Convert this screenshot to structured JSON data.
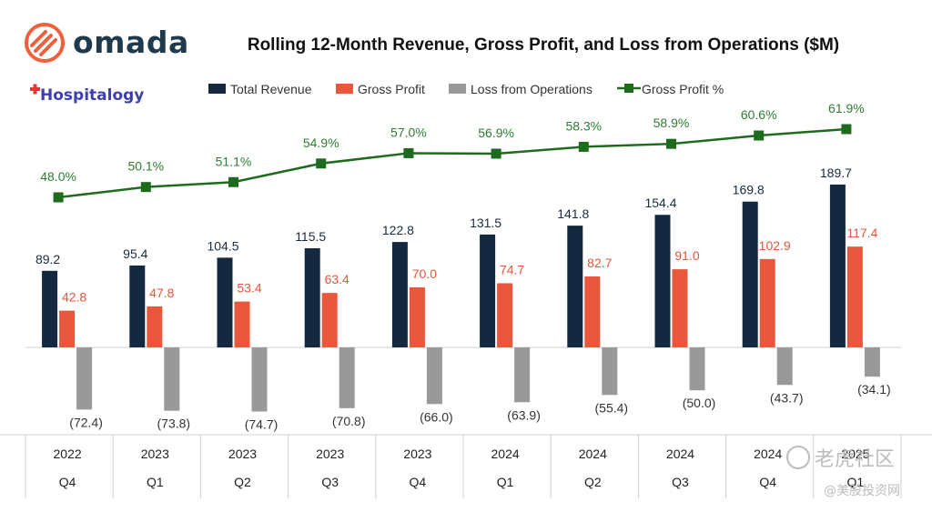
{
  "brand": {
    "logo_text": "omada",
    "hospitalogy_text": "Hospitalogy"
  },
  "watermark": {
    "main": "老虎社区",
    "sub": "@美股投资网"
  },
  "colors": {
    "revenue": "#142840",
    "gross_profit": "#e9573d",
    "loss": "#999999",
    "gross_profit_pct": "#1e6b1e",
    "omada_orange": "#f0603c"
  },
  "chart_data": {
    "type": "bar",
    "title": "Rolling 12-Month Revenue, Gross Profit, and Loss from Operations ($M)",
    "legend_position": "top",
    "categories": [
      {
        "year": "2022",
        "quarter": "Q4"
      },
      {
        "year": "2023",
        "quarter": "Q1"
      },
      {
        "year": "2023",
        "quarter": "Q2"
      },
      {
        "year": "2023",
        "quarter": "Q3"
      },
      {
        "year": "2023",
        "quarter": "Q4"
      },
      {
        "year": "2024",
        "quarter": "Q1"
      },
      {
        "year": "2024",
        "quarter": "Q2"
      },
      {
        "year": "2024",
        "quarter": "Q3"
      },
      {
        "year": "2024",
        "quarter": "Q4"
      },
      {
        "year": "2025",
        "quarter": "Q1"
      }
    ],
    "series": [
      {
        "name": "Total Revenue",
        "type": "bar",
        "values": [
          89.2,
          95.4,
          104.5,
          115.5,
          122.8,
          131.5,
          141.8,
          154.4,
          169.8,
          189.7
        ],
        "labels": [
          "89.2",
          "95.4",
          "104.5",
          "115.5",
          "122.8",
          "131.5",
          "141.8",
          "154.4",
          "169.8",
          "189.7"
        ]
      },
      {
        "name": "Gross Profit",
        "type": "bar",
        "values": [
          42.8,
          47.8,
          53.4,
          63.4,
          70.0,
          74.7,
          82.7,
          91.0,
          102.9,
          117.4
        ],
        "labels": [
          "42.8",
          "47.8",
          "53.4",
          "63.4",
          "70.0",
          "74.7",
          "82.7",
          "91.0",
          "102.9",
          "117.4"
        ]
      },
      {
        "name": "Loss from Operations",
        "type": "bar",
        "values": [
          -72.4,
          -73.8,
          -74.7,
          -70.8,
          -66.0,
          -63.9,
          -55.4,
          -50.0,
          -43.7,
          -34.1
        ],
        "labels": [
          "(72.4)",
          "(73.8)",
          "(74.7)",
          "(70.8)",
          "(66.0)",
          "(63.9)",
          "(55.4)",
          "(50.0)",
          "(43.7)",
          "(34.1)"
        ]
      },
      {
        "name": "Gross Profit %",
        "type": "line",
        "values": [
          48.0,
          50.1,
          51.1,
          54.9,
          57.0,
          56.9,
          58.3,
          58.9,
          60.6,
          61.9
        ],
        "labels": [
          "48.0%",
          "50.1%",
          "51.1%",
          "54.9%",
          "57.0%",
          "56.9%",
          "58.3%",
          "58.9%",
          "60.6%",
          "61.9%"
        ]
      }
    ],
    "grid": false
  }
}
